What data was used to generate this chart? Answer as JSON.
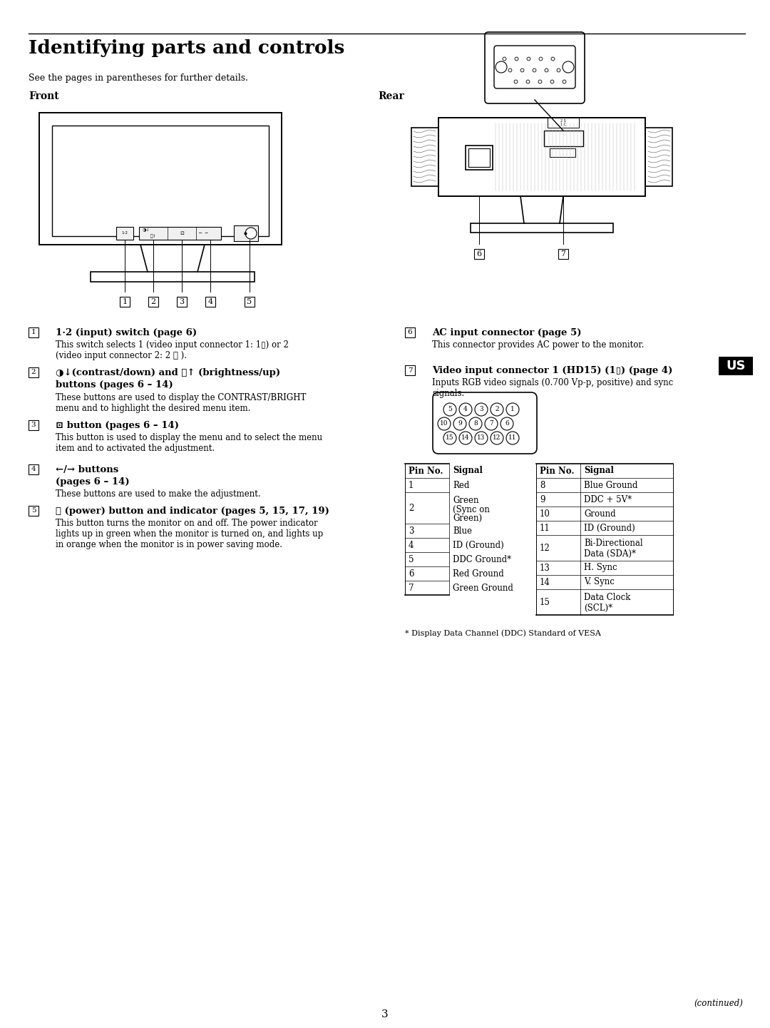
{
  "bg_color": "#ffffff",
  "title": "Identifying parts and controls",
  "subtitle": "See the pages in parentheses for further details.",
  "front_label": "Front",
  "rear_label": "Rear",
  "footnote": "* Display Data Channel (DDC) Standard of VESA",
  "page_number": "3",
  "continued": "(continued)",
  "us_label": "US",
  "pin_table_left": [
    [
      "Pin No.",
      "Signal"
    ],
    [
      "1",
      "Red"
    ],
    [
      "2",
      "Green\n(Sync on\nGreen)"
    ],
    [
      "3",
      "Blue"
    ],
    [
      "4",
      "ID (Ground)"
    ],
    [
      "5",
      "DDC Ground*"
    ],
    [
      "6",
      "Red Ground"
    ],
    [
      "7",
      "Green Ground"
    ]
  ],
  "pin_table_right": [
    [
      "Pin No.",
      "Signal"
    ],
    [
      "8",
      "Blue Ground"
    ],
    [
      "9",
      "DDC + 5V*"
    ],
    [
      "10",
      "Ground"
    ],
    [
      "11",
      "ID (Ground)"
    ],
    [
      "12",
      "Bi-Directional\nData (SDA)*"
    ],
    [
      "13",
      "H. Sync"
    ],
    [
      "14",
      "V. Sync"
    ],
    [
      "15",
      "Data Clock\n(SCL)*"
    ]
  ]
}
